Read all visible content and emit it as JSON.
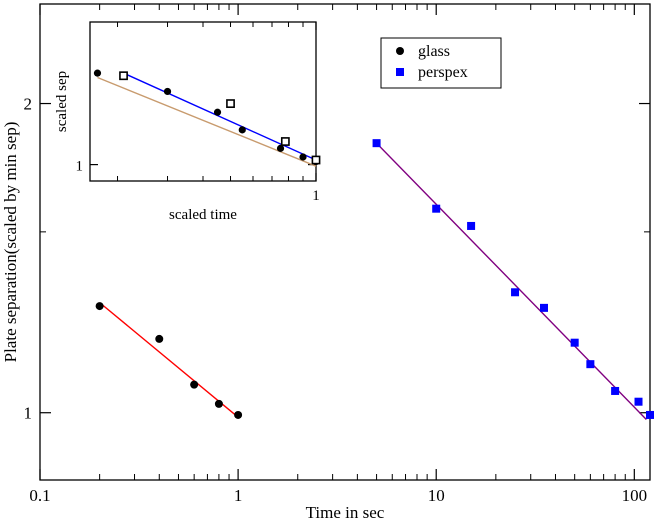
{
  "chart_data": [
    {
      "type": "scatter",
      "xlabel": "Time in sec",
      "ylabel": "Plate separation(scaled by min sep)",
      "xscale": "log",
      "yscale": "log",
      "xlim": [
        0.1,
        120
      ],
      "ylim": [
        0.86,
        2.5
      ],
      "x_ticks": [
        {
          "value": 0.1,
          "label": "0.1"
        },
        {
          "value": 1,
          "label": "1"
        },
        {
          "value": 10,
          "label": "10"
        },
        {
          "value": 100,
          "label": "100"
        }
      ],
      "y_ticks": [
        {
          "value": 1,
          "label": "1"
        },
        {
          "value": 2,
          "label": "2"
        }
      ],
      "y_minor_ticks": [
        1.5
      ],
      "legend": {
        "position": "top-right"
      },
      "series": [
        {
          "name": "glass",
          "marker": "circle",
          "color": "#000000",
          "points": [
            [
              0.2,
              1.27
            ],
            [
              0.4,
              1.18
            ],
            [
              0.6,
              1.065
            ],
            [
              0.8,
              1.02
            ],
            [
              1.0,
              0.995
            ]
          ],
          "fit": {
            "color": "#ff0000",
            "from": [
              0.2,
              1.28
            ],
            "to": [
              1.0,
              0.99
            ]
          }
        },
        {
          "name": "perspex",
          "marker": "square",
          "color": "#0000ff",
          "points": [
            [
              5,
              1.83
            ],
            [
              10,
              1.58
            ],
            [
              15,
              1.52
            ],
            [
              25,
              1.31
            ],
            [
              35,
              1.265
            ],
            [
              50,
              1.17
            ],
            [
              60,
              1.115
            ],
            [
              80,
              1.05
            ],
            [
              105,
              1.025
            ],
            [
              120,
              0.995
            ]
          ],
          "fit": {
            "color": "#800080",
            "from": [
              5,
              1.83
            ],
            "to": [
              115,
              0.985
            ]
          }
        }
      ]
    },
    {
      "type": "scatter",
      "xlabel": "scaled time",
      "ylabel": "scaled sep",
      "xscale": "log",
      "yscale": "log",
      "xlim": [
        0.16,
        1.0
      ],
      "ylim": [
        0.9,
        2.5
      ],
      "x_ticks": [
        {
          "value": 1,
          "label": "1"
        }
      ],
      "y_ticks": [
        {
          "value": 1,
          "label": "1"
        }
      ],
      "series": [
        {
          "marker": "circle",
          "color": "#000000",
          "points": [
            [
              0.17,
              1.8
            ],
            [
              0.3,
              1.6
            ],
            [
              0.45,
              1.4
            ],
            [
              0.55,
              1.25
            ],
            [
              0.75,
              1.11
            ],
            [
              0.9,
              1.05
            ],
            [
              1.0,
              1.02
            ]
          ],
          "fit": {
            "color": "#c89b6e",
            "from": [
              0.17,
              1.75
            ],
            "to": [
              1.0,
              0.99
            ]
          }
        },
        {
          "marker": "square-open",
          "color": "#000000",
          "points": [
            [
              0.21,
              1.77
            ],
            [
              0.5,
              1.48
            ],
            [
              0.78,
              1.16
            ],
            [
              1.0,
              1.03
            ]
          ],
          "fit": {
            "color": "#0000ff",
            "from": [
              0.21,
              1.8
            ],
            "to": [
              1.0,
              1.03
            ]
          }
        }
      ]
    }
  ]
}
